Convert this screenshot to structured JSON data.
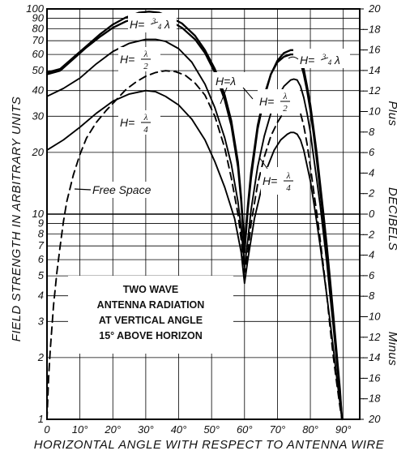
{
  "chart_data": {
    "type": "line",
    "title": "",
    "xlabel": "HORIZONTAL ANGLE WITH RESPECT TO ANTENNA WIRE",
    "ylabel": "FIELD STRENGTH IN ARBITRARY UNITS",
    "y2label": "DECIBELS",
    "y2_plus_label": "Plus",
    "y2_minus_label": "Minus",
    "xlim": [
      0,
      95
    ],
    "ylim": [
      1,
      100
    ],
    "yscale": "log",
    "grid": true,
    "x_ticks": [
      "0",
      "10°",
      "20°",
      "30°",
      "40°",
      "50°",
      "60°",
      "70°",
      "80°",
      "90°"
    ],
    "x_tick_values": [
      0,
      10,
      20,
      30,
      40,
      50,
      60,
      70,
      80,
      90
    ],
    "y_ticks": [
      "1",
      "2",
      "3",
      "4",
      "5",
      "6",
      "7",
      "8",
      "9",
      "10",
      "20",
      "30",
      "40",
      "50",
      "60",
      "70",
      "80",
      "90",
      "100"
    ],
    "y_tick_values": [
      1,
      2,
      3,
      4,
      5,
      6,
      7,
      8,
      9,
      10,
      20,
      30,
      40,
      50,
      60,
      70,
      80,
      90,
      100
    ],
    "y2_ticks": [
      "20",
      "18",
      "16",
      "14",
      "12",
      "10",
      "8",
      "6",
      "4",
      "2",
      "0",
      "2",
      "4",
      "6",
      "8",
      "10",
      "12",
      "14",
      "16",
      "18",
      "20"
    ],
    "y2_tick_values": [
      20,
      18,
      16,
      14,
      12,
      10,
      8,
      6,
      4,
      2,
      0,
      -2,
      -4,
      -6,
      -8,
      -10,
      -12,
      -14,
      -16,
      -18,
      -20
    ],
    "annotation": {
      "lines": [
        "TWO WAVE",
        "ANTENNA RADIATION",
        "AT VERTICAL ANGLE",
        "15° ABOVE HORIZON"
      ]
    },
    "series": [
      {
        "name": "Free Space",
        "style": "dashed",
        "label_parts": [
          "Free Space"
        ],
        "points": [
          [
            0,
            1
          ],
          [
            0.5,
            1.6
          ],
          [
            1,
            2.2
          ],
          [
            2,
            3.6
          ],
          [
            3,
            5.2
          ],
          [
            4,
            7
          ],
          [
            5,
            9.2
          ],
          [
            6,
            11.5
          ],
          [
            8,
            15.5
          ],
          [
            10,
            19.5
          ],
          [
            12,
            23.5
          ],
          [
            15,
            28
          ],
          [
            18,
            32
          ],
          [
            21,
            36
          ],
          [
            24,
            40.5
          ],
          [
            27,
            44
          ],
          [
            30,
            47
          ],
          [
            33,
            49
          ],
          [
            36,
            50
          ],
          [
            39,
            49.5
          ],
          [
            42,
            47.5
          ],
          [
            45,
            43.5
          ],
          [
            48,
            38
          ],
          [
            51,
            30
          ],
          [
            54,
            21
          ],
          [
            56,
            15
          ],
          [
            58,
            10
          ],
          [
            59,
            7.5
          ],
          [
            60,
            5.2
          ],
          [
            61,
            6.5
          ],
          [
            62,
            9
          ],
          [
            64,
            14
          ],
          [
            66,
            19
          ],
          [
            68,
            24
          ],
          [
            70,
            28
          ],
          [
            72,
            31.5
          ],
          [
            74,
            33.5
          ],
          [
            75,
            34
          ],
          [
            76,
            33.5
          ],
          [
            77,
            31
          ],
          [
            78,
            27
          ],
          [
            79,
            22
          ],
          [
            80,
            17
          ],
          [
            81,
            13
          ],
          [
            82,
            10
          ],
          [
            83,
            7.5
          ],
          [
            84,
            5.5
          ],
          [
            85,
            4
          ],
          [
            86,
            2.8
          ],
          [
            87,
            2
          ],
          [
            88,
            1.5
          ],
          [
            89,
            1.15
          ],
          [
            89.6,
            1
          ]
        ]
      },
      {
        "name": "H=λ/4",
        "style": "solid",
        "label_parts": [
          "H=",
          "λ",
          "4"
        ],
        "points": [
          [
            0,
            20.5
          ],
          [
            5,
            23
          ],
          [
            10,
            26.5
          ],
          [
            15,
            31
          ],
          [
            20,
            35.5
          ],
          [
            25,
            38.5
          ],
          [
            30,
            40
          ],
          [
            33,
            39.5
          ],
          [
            36,
            37.5
          ],
          [
            40,
            34
          ],
          [
            44,
            29
          ],
          [
            48,
            23
          ],
          [
            51,
            18
          ],
          [
            54,
            13.5
          ],
          [
            57,
            9.5
          ],
          [
            59,
            6.5
          ],
          [
            60,
            4.6
          ],
          [
            61,
            6
          ],
          [
            63,
            9.5
          ],
          [
            65,
            13
          ],
          [
            67,
            17
          ],
          [
            69,
            20.5
          ],
          [
            71,
            23
          ],
          [
            73,
            24.5
          ],
          [
            74,
            25
          ],
          [
            75,
            25
          ],
          [
            76,
            24.5
          ],
          [
            77,
            23
          ],
          [
            78,
            20.5
          ],
          [
            80,
            14.5
          ],
          [
            81,
            11.5
          ],
          [
            82,
            9
          ],
          [
            83,
            7
          ],
          [
            84,
            5.3
          ],
          [
            85,
            4
          ],
          [
            86,
            3
          ],
          [
            87,
            2.2
          ],
          [
            88,
            1.6
          ],
          [
            89,
            1.2
          ],
          [
            89.6,
            1
          ]
        ]
      },
      {
        "name": "H=λ/2",
        "style": "solid",
        "label_parts": [
          "H=",
          "λ",
          "2"
        ],
        "points": [
          [
            0,
            37.5
          ],
          [
            5,
            41
          ],
          [
            10,
            46
          ],
          [
            15,
            54
          ],
          [
            20,
            62
          ],
          [
            25,
            68
          ],
          [
            30,
            71
          ],
          [
            33,
            71
          ],
          [
            36,
            69.5
          ],
          [
            40,
            64
          ],
          [
            44,
            55
          ],
          [
            48,
            43
          ],
          [
            51,
            33
          ],
          [
            54,
            23.5
          ],
          [
            56,
            17.5
          ],
          [
            58,
            11.5
          ],
          [
            59,
            8.5
          ],
          [
            60,
            5.5
          ],
          [
            61,
            7.5
          ],
          [
            62,
            10.5
          ],
          [
            64,
            17
          ],
          [
            66,
            24
          ],
          [
            68,
            31
          ],
          [
            70,
            37
          ],
          [
            72,
            42
          ],
          [
            74,
            45
          ],
          [
            75,
            45.5
          ],
          [
            76,
            45
          ],
          [
            77,
            42
          ],
          [
            78,
            37
          ],
          [
            79,
            31
          ],
          [
            80,
            25
          ],
          [
            81,
            19
          ],
          [
            82,
            14.5
          ],
          [
            83,
            11
          ],
          [
            84,
            8
          ],
          [
            85,
            5.8
          ],
          [
            86,
            4
          ],
          [
            87,
            2.8
          ],
          [
            88,
            1.9
          ],
          [
            89,
            1.3
          ],
          [
            89.6,
            1
          ]
        ]
      },
      {
        "name": "H=λ",
        "style": "solid",
        "label_parts": [
          "H=λ"
        ],
        "points": [
          [
            0,
            49
          ],
          [
            4,
            51
          ],
          [
            8,
            58
          ],
          [
            12,
            66
          ],
          [
            16,
            75
          ],
          [
            20,
            84
          ],
          [
            24,
            91
          ],
          [
            28,
            96
          ],
          [
            31,
            97
          ],
          [
            34,
            96
          ],
          [
            37,
            92
          ],
          [
            41,
            85
          ],
          [
            45,
            74
          ],
          [
            48,
            63
          ],
          [
            51,
            51
          ],
          [
            54,
            38
          ],
          [
            56,
            28.5
          ],
          [
            58,
            18
          ],
          [
            59,
            12
          ],
          [
            60,
            7
          ],
          [
            61,
            11
          ],
          [
            62,
            16
          ],
          [
            64,
            27
          ],
          [
            66,
            38
          ],
          [
            68,
            48
          ],
          [
            70,
            55
          ],
          [
            72,
            58.5
          ],
          [
            74,
            60
          ],
          [
            75,
            60
          ],
          [
            76,
            59
          ],
          [
            77,
            55
          ],
          [
            78,
            48
          ],
          [
            79,
            40
          ],
          [
            80,
            32
          ],
          [
            81,
            24.5
          ],
          [
            82,
            18
          ],
          [
            83,
            13
          ],
          [
            84,
            9.3
          ],
          [
            85,
            6.5
          ],
          [
            86,
            4.5
          ],
          [
            87,
            3
          ],
          [
            88,
            2
          ],
          [
            89,
            1.35
          ],
          [
            89.6,
            1
          ]
        ]
      },
      {
        "name": "H=3/4λ",
        "style": "solid",
        "label_parts": [
          "H=",
          "3",
          "4",
          "λ"
        ],
        "points": [
          [
            0,
            48
          ],
          [
            4,
            50
          ],
          [
            8,
            57
          ],
          [
            12,
            65
          ],
          [
            16,
            73
          ],
          [
            20,
            81
          ],
          [
            24,
            87
          ],
          [
            28,
            91
          ],
          [
            31,
            92
          ],
          [
            34,
            91
          ],
          [
            37,
            88
          ],
          [
            41,
            81
          ],
          [
            45,
            71
          ],
          [
            48,
            61
          ],
          [
            51,
            49
          ],
          [
            54,
            36
          ],
          [
            56,
            27
          ],
          [
            58,
            17
          ],
          [
            59,
            11.5
          ],
          [
            60,
            6.5
          ],
          [
            61,
            10.5
          ],
          [
            62,
            15
          ],
          [
            64,
            26
          ],
          [
            66,
            37
          ],
          [
            68,
            48
          ],
          [
            70,
            56
          ],
          [
            72,
            61
          ],
          [
            74,
            63
          ],
          [
            75,
            63
          ],
          [
            76,
            62
          ],
          [
            77,
            58
          ],
          [
            78,
            51
          ],
          [
            79,
            42
          ],
          [
            80,
            34
          ],
          [
            81,
            26
          ],
          [
            82,
            19.5
          ],
          [
            83,
            14
          ],
          [
            84,
            10
          ],
          [
            85,
            7
          ],
          [
            86,
            4.8
          ],
          [
            87,
            3.2
          ],
          [
            88,
            2.1
          ],
          [
            89,
            1.4
          ],
          [
            89.6,
            1
          ]
        ]
      }
    ]
  }
}
